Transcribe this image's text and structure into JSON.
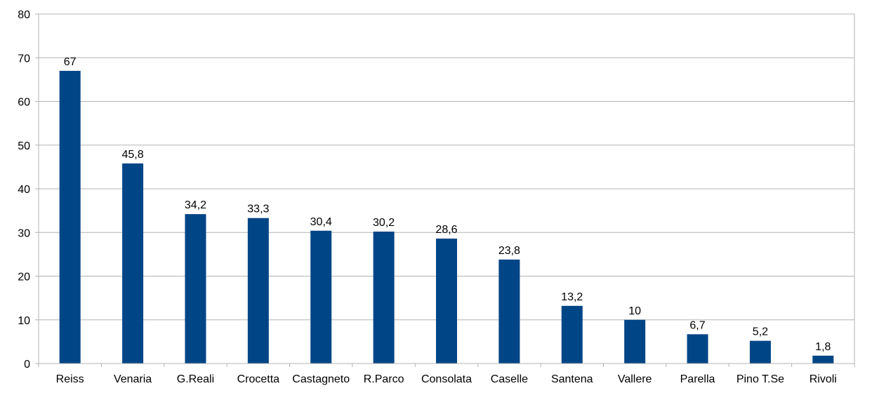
{
  "chart_data": {
    "type": "bar",
    "categories": [
      "Reiss",
      "Venaria",
      "G.Reali",
      "Crocetta",
      "Castagneto",
      "R.Parco",
      "Consolata",
      "Caselle",
      "Santena",
      "Vallere",
      "Parella",
      "Pino T.Se",
      "Rivoli"
    ],
    "values": [
      67,
      45.8,
      34.2,
      33.3,
      30.4,
      30.2,
      28.6,
      23.8,
      13.2,
      10,
      6.7,
      5.2,
      1.8
    ],
    "data_labels": [
      "67",
      "45,8",
      "34,2",
      "33,3",
      "30,4",
      "30,2",
      "28,6",
      "23,8",
      "13,2",
      "10",
      "6,7",
      "5,2",
      "1,8"
    ],
    "yticks": [
      0,
      10,
      20,
      30,
      40,
      50,
      60,
      70,
      80
    ],
    "ylim": [
      0,
      80
    ],
    "title": "",
    "xlabel": "",
    "ylabel": "",
    "grid": true,
    "bar_color": "#004586"
  }
}
